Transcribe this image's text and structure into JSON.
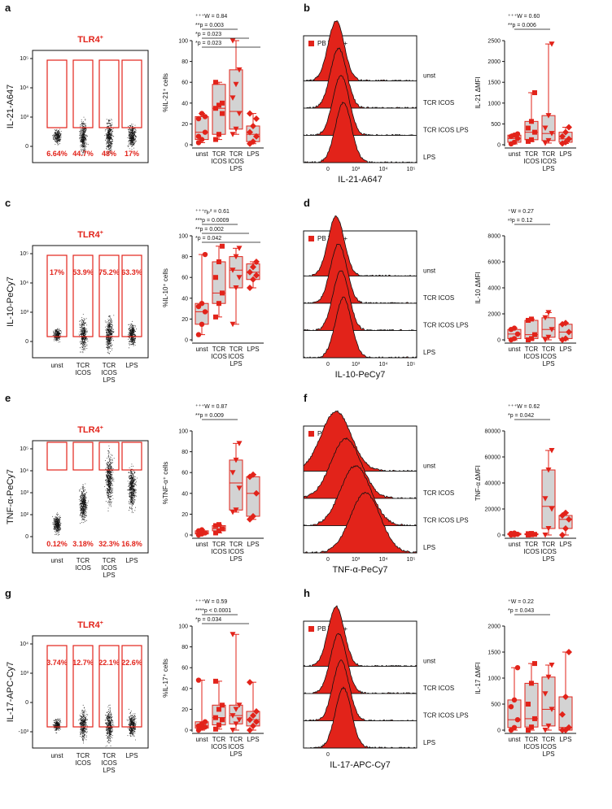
{
  "colors": {
    "red": "#e2231a",
    "grey": "#d3d3d3",
    "black": "#111111"
  },
  "labels": {
    "tlr4": "TLR4",
    "plus": "+",
    "pb_tlr4": "PB TLR4",
    "conditions": [
      "unst",
      "TCR ICOS",
      "TCR ICOS LPS",
      "LPS"
    ]
  },
  "chart_data": [
    {
      "panel": "a",
      "type": "scatter",
      "kind": "dot-plot",
      "title": "TLR4+",
      "ylabel": "IL-21-A647",
      "yticks": [
        "10⁵",
        "10⁴",
        "10³",
        "0"
      ],
      "gate_percents": [
        "6.64%",
        "44.7%",
        "48%",
        "17%"
      ],
      "categories": []
    },
    {
      "panel": "a-bar",
      "type": "bar",
      "kind": "box",
      "ylabel": "%IL-21⁺ cells",
      "ylim": [
        0,
        100
      ],
      "yticks": [
        "0",
        "20",
        "40",
        "60",
        "80",
        "100"
      ],
      "categories": [
        "unst",
        "TCR ICOS",
        "TCR ICOS LPS",
        "LPS"
      ],
      "boxes": [
        {
          "min": 2,
          "q1": 5,
          "median": 12,
          "q3": 27,
          "max": 30
        },
        {
          "min": 5,
          "q1": 10,
          "median": 35,
          "q3": 58,
          "max": 60
        },
        {
          "min": 10,
          "q1": 15,
          "median": 32,
          "q3": 72,
          "max": 100
        },
        {
          "min": 1,
          "q1": 3,
          "median": 10,
          "q3": 18,
          "max": 30
        }
      ],
      "points": [
        [
          2,
          5,
          12,
          25,
          30,
          27,
          8
        ],
        [
          5,
          10,
          30,
          35,
          38,
          40,
          60
        ],
        [
          10,
          15,
          30,
          45,
          58,
          72,
          100
        ],
        [
          1,
          3,
          8,
          12,
          18,
          25,
          30
        ]
      ],
      "annotations": [
        "⁺⁺⁺W = 0.84",
        "**p = 0.003",
        "*p = 0.023",
        "*p = 0.023"
      ]
    },
    {
      "panel": "b",
      "type": "area",
      "kind": "histogram",
      "xlabel": "IL-21-A647",
      "xticks": [
        "0",
        "10³",
        "10⁴",
        "10⁵"
      ],
      "rows": [
        "unst",
        "TCR ICOS",
        "TCR ICOS LPS",
        "LPS"
      ],
      "legend": "PB TLR4+"
    },
    {
      "panel": "b-bar",
      "type": "bar",
      "kind": "box",
      "ylabel": "IL-21 ΔMFI",
      "ylim": [
        0,
        2500
      ],
      "yticks": [
        "0",
        "500",
        "1000",
        "1500",
        "2000",
        "2500"
      ],
      "categories": [
        "unst",
        "TCR ICOS",
        "TCR ICOS LPS",
        "LPS"
      ],
      "boxes": [
        {
          "min": 20,
          "q1": 60,
          "median": 150,
          "q3": 230,
          "max": 260
        },
        {
          "min": 80,
          "q1": 120,
          "median": 300,
          "q3": 560,
          "max": 1250
        },
        {
          "min": 40,
          "q1": 100,
          "median": 270,
          "q3": 700,
          "max": 2420
        },
        {
          "min": 30,
          "q1": 60,
          "median": 140,
          "q3": 300,
          "max": 420
        }
      ],
      "points": [
        [
          20,
          60,
          150,
          200,
          230,
          260
        ],
        [
          80,
          120,
          300,
          400,
          560,
          1250
        ],
        [
          40,
          100,
          270,
          400,
          700,
          2420
        ],
        [
          30,
          60,
          140,
          200,
          300,
          420
        ]
      ],
      "annotations": [
        "⁺⁺⁺W = 0.60",
        "**p = 0.006"
      ]
    },
    {
      "panel": "c",
      "type": "scatter",
      "kind": "dot-plot",
      "title": "TLR4+",
      "ylabel": "IL-10-PeCy7",
      "yticks": [
        "10⁵",
        "10⁴",
        "10³",
        "0"
      ],
      "gate_percents": [
        "17%",
        "53.9%",
        "75.2%",
        "63.3%"
      ],
      "categories": [
        "unst",
        "TCR ICOS",
        "TCR ICOS LPS",
        "LPS"
      ]
    },
    {
      "panel": "c-bar",
      "type": "bar",
      "kind": "box",
      "ylabel": "%IL-10⁺ cells",
      "ylim": [
        0,
        100
      ],
      "yticks": [
        "0",
        "20",
        "40",
        "60",
        "80",
        "100"
      ],
      "categories": [
        "unst",
        "TCR ICOS",
        "TCR ICOS LPS",
        "LPS"
      ],
      "boxes": [
        {
          "min": 5,
          "q1": 15,
          "median": 27,
          "q3": 35,
          "max": 82
        },
        {
          "min": 22,
          "q1": 35,
          "median": 45,
          "q3": 75,
          "max": 90
        },
        {
          "min": 15,
          "q1": 50,
          "median": 67,
          "q3": 80,
          "max": 88
        },
        {
          "min": 50,
          "q1": 58,
          "median": 65,
          "q3": 73,
          "max": 75
        }
      ],
      "points": [
        [
          5,
          15,
          27,
          32,
          35,
          82
        ],
        [
          22,
          35,
          45,
          60,
          75,
          90
        ],
        [
          15,
          50,
          60,
          67,
          80,
          88
        ],
        [
          50,
          58,
          62,
          65,
          70,
          75
        ]
      ],
      "annotations": [
        "⁺⁺⁺ηₚ² = 0.61",
        "***p = 0.0009",
        "**p = 0.002",
        "*p = 0.042"
      ]
    },
    {
      "panel": "d",
      "type": "area",
      "kind": "histogram",
      "xlabel": "IL-10-PeCy7",
      "xticks": [
        "0",
        "10³",
        "10⁴",
        "10⁵"
      ],
      "rows": [
        "unst",
        "TCR ICOS",
        "TCR ICOS LPS",
        "LPS"
      ],
      "legend": "PB TLR4+"
    },
    {
      "panel": "d-bar",
      "type": "bar",
      "kind": "box",
      "ylabel": "IL-10 ΔMFI",
      "ylim": [
        0,
        8000
      ],
      "yticks": [
        "0",
        "2000",
        "4000",
        "6000",
        "8000"
      ],
      "categories": [
        "unst",
        "TCR ICOS",
        "TCR ICOS LPS",
        "LPS"
      ],
      "boxes": [
        {
          "min": 0,
          "q1": 100,
          "median": 450,
          "q3": 800,
          "max": 900
        },
        {
          "min": 0,
          "q1": 100,
          "median": 400,
          "q3": 1500,
          "max": 1600
        },
        {
          "min": 0,
          "q1": 200,
          "median": 800,
          "q3": 1700,
          "max": 2100
        },
        {
          "min": 0,
          "q1": 100,
          "median": 600,
          "q3": 1200,
          "max": 1300
        }
      ],
      "points": [
        [
          0,
          100,
          450,
          800,
          900
        ],
        [
          0,
          100,
          400,
          1500,
          1600
        ],
        [
          0,
          200,
          800,
          1700,
          2100
        ],
        [
          0,
          100,
          600,
          1200,
          1300
        ]
      ],
      "annotations": [
        "⁺W = 0.27",
        "ⁿˢp = 0.12"
      ]
    },
    {
      "panel": "e",
      "type": "scatter",
      "kind": "dot-plot",
      "title": "TLR4+",
      "ylabel": "TNF-α-PeCy7",
      "yticks": [
        "10⁵",
        "10⁴",
        "10³",
        "10²",
        "0"
      ],
      "gate_percents": [
        "0.12%",
        "3.18%",
        "32.3%",
        "16.8%"
      ],
      "categories": [
        "unst",
        "TCR ICOS",
        "TCR ICOS LPS",
        "LPS"
      ]
    },
    {
      "panel": "e-bar",
      "type": "bar",
      "kind": "box",
      "ylabel": "%TNF-α⁺ cells",
      "ylim": [
        0,
        100
      ],
      "yticks": [
        "0",
        "20",
        "40",
        "60",
        "80",
        "100"
      ],
      "categories": [
        "unst",
        "TCR ICOS",
        "TCR ICOS LPS",
        "LPS"
      ],
      "boxes": [
        {
          "min": 0,
          "q1": 1,
          "median": 2,
          "q3": 4,
          "max": 5
        },
        {
          "min": 2,
          "q1": 4,
          "median": 6,
          "q3": 9,
          "max": 10
        },
        {
          "min": 22,
          "q1": 24,
          "median": 50,
          "q3": 72,
          "max": 88
        },
        {
          "min": 15,
          "q1": 18,
          "median": 40,
          "q3": 56,
          "max": 58
        }
      ],
      "points": [
        [
          0,
          1,
          2,
          4,
          5
        ],
        [
          2,
          4,
          6,
          9,
          10
        ],
        [
          22,
          24,
          45,
          60,
          72,
          88
        ],
        [
          15,
          18,
          40,
          56,
          58
        ]
      ],
      "annotations": [
        "⁺⁺⁺W = 0.87",
        "**p = 0.009"
      ]
    },
    {
      "panel": "f",
      "type": "area",
      "kind": "histogram",
      "xlabel": "TNF-α-PeCy7",
      "xticks": [
        "0",
        "10³",
        "10⁴",
        "10⁵"
      ],
      "rows": [
        "unst",
        "TCR ICOS",
        "TCR ICOS LPS",
        "LPS"
      ],
      "legend": "PB TLR4+"
    },
    {
      "panel": "f-bar",
      "type": "bar",
      "kind": "box",
      "ylabel": "TNF-α ΔMFI",
      "ylim": [
        0,
        80000
      ],
      "yticks": [
        "0",
        "20000",
        "40000",
        "60000",
        "80000"
      ],
      "categories": [
        "unst",
        "TCR ICOS",
        "TCR ICOS LPS",
        "LPS"
      ],
      "boxes": [
        {
          "min": 0,
          "q1": 200,
          "median": 600,
          "q3": 1200,
          "max": 1500
        },
        {
          "min": 0,
          "q1": 200,
          "median": 500,
          "q3": 1000,
          "max": 1200
        },
        {
          "min": 0,
          "q1": 5000,
          "median": 22000,
          "q3": 50000,
          "max": 65000
        },
        {
          "min": 0,
          "q1": 5000,
          "median": 12000,
          "q3": 15000,
          "max": 17000
        }
      ],
      "points": [
        [
          0,
          200,
          600,
          1200,
          1500
        ],
        [
          0,
          200,
          500,
          1000,
          1200
        ],
        [
          0,
          5000,
          20000,
          28000,
          50000,
          65000
        ],
        [
          0,
          5000,
          12000,
          15000,
          17000
        ]
      ],
      "annotations": [
        "⁺⁺⁺W = 0.62",
        "*p = 0.042"
      ]
    },
    {
      "panel": "g",
      "type": "scatter",
      "kind": "dot-plot",
      "title": "TLR4+",
      "ylabel": "IL-17-APC-Cy7",
      "yticks": [
        "10⁴",
        "10³",
        "0",
        "-10³"
      ],
      "gate_percents": [
        "3.74%",
        "12.7%",
        "22.1%",
        "22.6%"
      ],
      "categories": [
        "unst",
        "TCR ICOS",
        "TCR ICOS LPS",
        "LPS"
      ]
    },
    {
      "panel": "g-bar",
      "type": "bar",
      "kind": "box",
      "ylabel": "%IL-17⁺ cells",
      "ylim": [
        0,
        100
      ],
      "yticks": [
        "0",
        "20",
        "40",
        "60",
        "80",
        "100"
      ],
      "categories": [
        "unst",
        "TCR ICOS",
        "TCR ICOS LPS",
        "LPS"
      ],
      "boxes": [
        {
          "min": 0,
          "q1": 2,
          "median": 4,
          "q3": 8,
          "max": 48
        },
        {
          "min": 1,
          "q1": 5,
          "median": 12,
          "q3": 24,
          "max": 47
        },
        {
          "min": 0,
          "q1": 6,
          "median": 14,
          "q3": 24,
          "max": 92
        },
        {
          "min": 0,
          "q1": 4,
          "median": 10,
          "q3": 18,
          "max": 46
        }
      ],
      "points": [
        [
          0,
          2,
          3,
          4,
          6,
          8,
          48
        ],
        [
          1,
          5,
          10,
          12,
          20,
          24,
          47
        ],
        [
          0,
          6,
          10,
          14,
          20,
          24,
          92
        ],
        [
          0,
          4,
          8,
          10,
          14,
          18,
          46
        ]
      ],
      "annotations": [
        "⁺⁺⁺W = 0.59",
        "****p < 0.0001",
        "*p = 0.034"
      ]
    },
    {
      "panel": "h",
      "type": "area",
      "kind": "histogram",
      "xlabel": "IL-17-APC-Cy7",
      "xticks": [
        "0"
      ],
      "rows": [
        "unst",
        "TCR ICOS",
        "TCR ICOS LPS",
        "LPS"
      ],
      "legend": "PB TLR4+"
    },
    {
      "panel": "h-bar",
      "type": "bar",
      "kind": "box",
      "ylabel": "IL-17 ΔMFI",
      "ylim": [
        0,
        2000
      ],
      "yticks": [
        "0",
        "500",
        "1000",
        "1500",
        "2000"
      ],
      "categories": [
        "unst",
        "TCR ICOS",
        "TCR ICOS LPS",
        "LPS"
      ],
      "boxes": [
        {
          "min": 0,
          "q1": 50,
          "median": 200,
          "q3": 580,
          "max": 1200
        },
        {
          "min": 0,
          "q1": 60,
          "median": 220,
          "q3": 900,
          "max": 1280
        },
        {
          "min": 0,
          "q1": 80,
          "median": 400,
          "q3": 1020,
          "max": 1250
        },
        {
          "min": 0,
          "q1": 0,
          "median": 50,
          "q3": 640,
          "max": 1500
        }
      ],
      "points": [
        [
          0,
          50,
          200,
          450,
          580,
          1200
        ],
        [
          0,
          60,
          220,
          500,
          900,
          1280
        ],
        [
          0,
          80,
          400,
          700,
          1020,
          1250
        ],
        [
          0,
          0,
          50,
          300,
          640,
          1500
        ]
      ],
      "annotations": [
        "⁺W = 0.22",
        "*p = 0.043"
      ]
    }
  ],
  "panels": [
    "a",
    "b",
    "c",
    "d",
    "e",
    "f",
    "g",
    "h"
  ]
}
